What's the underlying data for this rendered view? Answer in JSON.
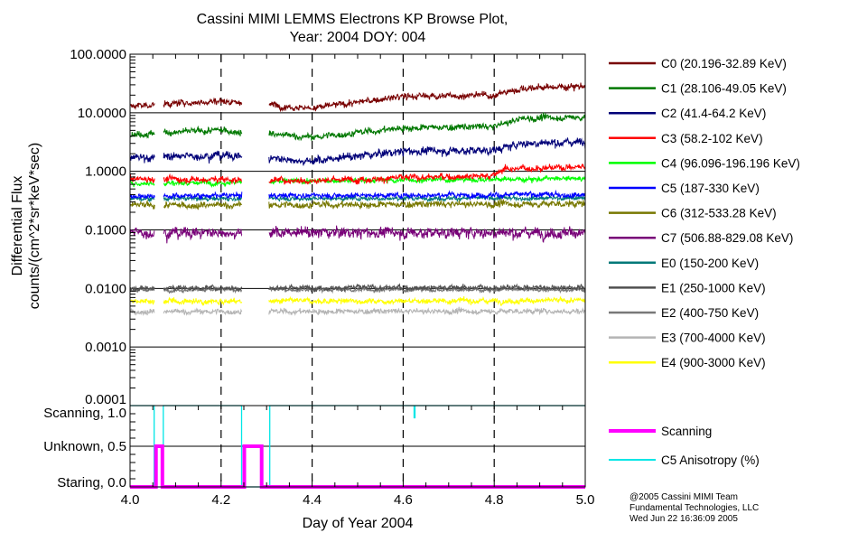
{
  "chart_data": [
    {
      "type": "line",
      "title": "Cassini MIMI LEMMS Electrons KP Browse Plot,",
      "subtitle": "Year: 2004 DOY: 004",
      "ylabel_line1": "Differential Flux",
      "ylabel_line2": "counts/(cm^2*sr*keV*sec)",
      "yscale": "log",
      "ylim": [
        0.0001,
        100
      ],
      "xlim": [
        4.0,
        5.0
      ],
      "grid": true,
      "legend_position": "right",
      "ytick_labels": [
        "100.0000",
        "10.0000",
        "1.0000",
        "0.1000",
        "0.0100",
        "0.0010",
        "0.0001"
      ],
      "ytick_values": [
        100,
        10,
        1,
        0.1,
        0.01,
        0.001,
        0.0001
      ],
      "data_gaps": [
        [
          4.054,
          4.073
        ],
        [
          4.246,
          4.305
        ]
      ],
      "series": [
        {
          "name": "C0 (20.196-32.89 KeV)",
          "color": "#780000",
          "noise": 0.05,
          "levels": [
            [
              4.0,
              13
            ],
            [
              4.2,
              16
            ],
            [
              4.4,
              12
            ],
            [
              4.6,
              19
            ],
            [
              4.8,
              20
            ],
            [
              4.86,
              26
            ],
            [
              5.0,
              29
            ]
          ]
        },
        {
          "name": "C1 (28.106-49.05 KeV)",
          "color": "#007800",
          "noise": 0.05,
          "levels": [
            [
              4.0,
              4.3
            ],
            [
              4.2,
              5.0
            ],
            [
              4.4,
              3.8
            ],
            [
              4.6,
              5.5
            ],
            [
              4.8,
              5.8
            ],
            [
              4.86,
              8
            ],
            [
              5.0,
              8.5
            ]
          ]
        },
        {
          "name": "C2 (41.4-64.2 KeV)",
          "color": "#000078",
          "noise": 0.06,
          "levels": [
            [
              4.0,
              1.7
            ],
            [
              4.2,
              1.9
            ],
            [
              4.4,
              1.5
            ],
            [
              4.6,
              2.2
            ],
            [
              4.8,
              2.3
            ],
            [
              4.86,
              3.0
            ],
            [
              5.0,
              3.2
            ]
          ]
        },
        {
          "name": "C3 (58.2-102 KeV)",
          "color": "#ff0000",
          "noise": 0.05,
          "levels": [
            [
              4.0,
              0.75
            ],
            [
              4.4,
              0.7
            ],
            [
              4.8,
              0.85
            ],
            [
              4.82,
              1.1
            ],
            [
              5.0,
              1.2
            ]
          ]
        },
        {
          "name": "C4 (96.096-196.196 KeV)",
          "color": "#00ff00",
          "noise": 0.04,
          "levels": [
            [
              4.0,
              0.62
            ],
            [
              4.5,
              0.7
            ],
            [
              5.0,
              0.75
            ]
          ]
        },
        {
          "name": "C5 (187-330 KeV)",
          "color": "#0000ff",
          "noise": 0.04,
          "levels": [
            [
              4.0,
              0.38
            ],
            [
              5.0,
              0.4
            ]
          ]
        },
        {
          "name": "C6 (312-533.28 KeV)",
          "color": "#787800",
          "noise": 0.05,
          "levels": [
            [
              4.0,
              0.26
            ],
            [
              5.0,
              0.28
            ]
          ]
        },
        {
          "name": "C7 (506.88-829.08 KeV)",
          "color": "#780078",
          "noise": 0.08,
          "levels": [
            [
              4.0,
              0.09
            ],
            [
              5.0,
              0.09
            ]
          ]
        },
        {
          "name": "E0 (150-200 KeV)",
          "color": "#007878",
          "noise": 0.03,
          "levels": [
            [
              4.0,
              0.34
            ],
            [
              5.0,
              0.35
            ]
          ]
        },
        {
          "name": "E1 (250-1000 KeV)",
          "color": "#505050",
          "noise": 0.04,
          "levels": [
            [
              4.0,
              0.0102
            ],
            [
              5.0,
              0.0105
            ]
          ]
        },
        {
          "name": "E2 (400-750 KeV)",
          "color": "#787878",
          "noise": 0.03,
          "levels": [
            [
              4.0,
              0.0095
            ],
            [
              5.0,
              0.0095
            ]
          ]
        },
        {
          "name": "E3 (700-4000 KeV)",
          "color": "#b4b4b4",
          "noise": 0.04,
          "levels": [
            [
              4.0,
              0.004
            ],
            [
              5.0,
              0.0041
            ]
          ]
        },
        {
          "name": "E4 (900-3000 KeV)",
          "color": "#ffff00",
          "noise": 0.04,
          "levels": [
            [
              4.0,
              0.006
            ],
            [
              5.0,
              0.0062
            ]
          ]
        }
      ]
    },
    {
      "type": "line",
      "xlabel": "Day of Year 2004",
      "xlim": [
        4.0,
        5.0
      ],
      "ylim": [
        0,
        1
      ],
      "xtick_labels": [
        "4.0",
        "4.2",
        "4.4",
        "4.6",
        "4.8",
        "5.0"
      ],
      "xtick_values": [
        4.0,
        4.2,
        4.4,
        4.6,
        4.8,
        5.0
      ],
      "ytick_labels": [
        "Scanning, 1.0",
        "Unknown, 0.5",
        "Staring, 0.0"
      ],
      "ytick_values": [
        1.0,
        0.5,
        0.0
      ],
      "series": [
        {
          "name": "Scanning",
          "color": "#ff00ff",
          "points": [
            [
              4.0,
              0
            ],
            [
              4.057,
              0
            ],
            [
              4.057,
              0.5
            ],
            [
              4.071,
              0.5
            ],
            [
              4.071,
              0
            ],
            [
              4.251,
              0
            ],
            [
              4.251,
              0.5
            ],
            [
              4.289,
              0.5
            ],
            [
              4.289,
              0
            ],
            [
              5.0,
              0
            ]
          ]
        },
        {
          "name": "C5 Anisotropy (%)",
          "color": "#00e6e6",
          "points": [
            [
              4.0,
              1
            ],
            [
              4.053,
              1
            ],
            [
              4.053,
              0
            ],
            [
              4.073,
              0
            ],
            [
              4.073,
              1
            ],
            [
              4.245,
              1
            ],
            [
              4.245,
              0
            ],
            [
              4.307,
              0
            ],
            [
              4.307,
              1
            ],
            [
              4.624,
              1
            ],
            [
              4.624,
              0.85
            ],
            [
              4.626,
              0.85
            ],
            [
              4.626,
              1
            ],
            [
              5.0,
              1
            ]
          ]
        }
      ]
    }
  ],
  "footer": {
    "line1": "@2005 Cassini MIMI Team",
    "line2": "Fundamental Technologies, LLC",
    "line3": "Wed Jun 22 16:36:09 2005"
  }
}
